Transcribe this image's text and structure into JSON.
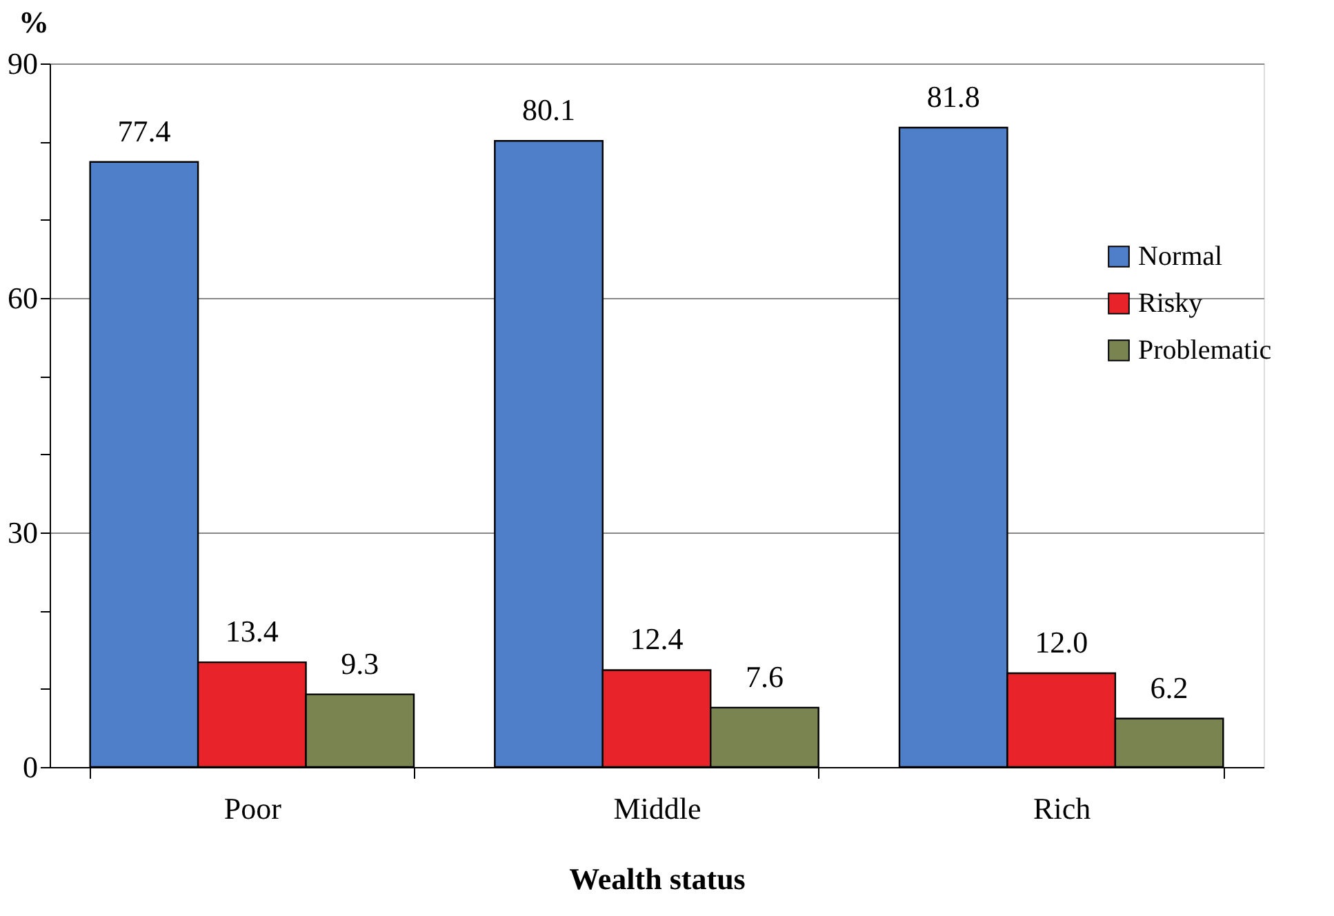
{
  "chart_data": {
    "type": "bar",
    "xlabel": "Wealth status",
    "ylabel": "%",
    "categories": [
      "Poor",
      "Middle",
      "Rich"
    ],
    "series": [
      {
        "name": "Normal",
        "color": "#4f7fc9",
        "values": [
          77.4,
          80.1,
          81.8
        ],
        "value_labels": [
          "77.4",
          "80.1",
          "81.8"
        ]
      },
      {
        "name": "Risky",
        "color": "#e8242a",
        "values": [
          13.4,
          12.4,
          12.0
        ],
        "value_labels": [
          "13.4",
          "12.4",
          "12.0"
        ]
      },
      {
        "name": "Problematic",
        "color": "#7a8450",
        "values": [
          9.3,
          7.6,
          6.2
        ],
        "value_labels": [
          "9.3",
          "7.6",
          "6.2"
        ]
      }
    ],
    "ylim": [
      0,
      90
    ],
    "yticks": [
      0,
      {
        "value": 10,
        "label": null
      },
      {
        "value": 20,
        "label": null
      },
      30,
      {
        "value": 40,
        "label": null
      },
      {
        "value": 50,
        "label": null
      },
      60,
      {
        "value": 70,
        "label": null
      },
      {
        "value": 80,
        "label": null
      },
      90
    ],
    "grid": "y",
    "legend": "right"
  }
}
